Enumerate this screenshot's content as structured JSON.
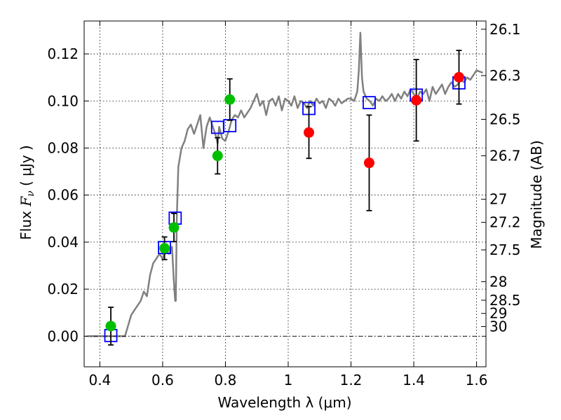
{
  "chart_data": {
    "type": "scatter",
    "xlabel": "Wavelength  λ (μm)",
    "ylabel_prefix": "Flux  ",
    "ylabel_symbol": "F",
    "ylabel_subscript": "ν",
    "ylabel_suffix": "  ( μJy )",
    "y2label": "Magnitude (AB)",
    "xlim": [
      0.35,
      1.63
    ],
    "ylim": [
      -0.013,
      0.134
    ],
    "grid": true,
    "x_ticks": [
      0.4,
      0.6,
      0.8,
      1.0,
      1.2,
      1.4,
      1.6
    ],
    "x_tick_labels": [
      "0.4",
      "0.6",
      "0.8",
      "1",
      "1.2",
      "1.4",
      "1.6"
    ],
    "y_ticks": [
      0.0,
      0.02,
      0.04,
      0.06,
      0.08,
      0.1,
      0.12
    ],
    "y_tick_labels": [
      "0.00",
      "0.02",
      "0.04",
      "0.06",
      "0.08",
      "0.10",
      "0.12"
    ],
    "y2_ticks": [
      {
        "label": "26.1",
        "flux": 0.1305
      },
      {
        "label": "26.3",
        "flux": 0.1108
      },
      {
        "label": "26.5",
        "flux": 0.0922
      },
      {
        "label": "26.7",
        "flux": 0.0767
      },
      {
        "label": "27",
        "flux": 0.0582
      },
      {
        "label": "27.2",
        "flux": 0.0484
      },
      {
        "label": "27.5",
        "flux": 0.0367
      },
      {
        "label": "28",
        "flux": 0.0232
      },
      {
        "label": "28.5",
        "flux": 0.0153
      },
      {
        "label": "29",
        "flux": 0.0097
      },
      {
        "label": "30",
        "flux": 0.0041
      }
    ],
    "series": [
      {
        "marker": "circle",
        "color": "#00bf00",
        "points": [
          {
            "x": 0.435,
            "y": 0.0043,
            "err": 0.008
          },
          {
            "x": 0.606,
            "y": 0.0374,
            "err": 0.0048
          },
          {
            "x": 0.636,
            "y": 0.0462,
            "err": 0.006
          },
          {
            "x": 0.775,
            "y": 0.0767,
            "err": 0.0077
          },
          {
            "x": 0.814,
            "y": 0.1006,
            "err": 0.0088
          }
        ]
      },
      {
        "marker": "circle",
        "color": "#ff0000",
        "points": [
          {
            "x": 1.066,
            "y": 0.0866,
            "err": 0.011
          },
          {
            "x": 1.258,
            "y": 0.0737,
            "err": 0.0203
          },
          {
            "x": 1.408,
            "y": 0.1003,
            "err": 0.0173
          },
          {
            "x": 1.544,
            "y": 0.1101,
            "err": 0.0114
          }
        ]
      },
      {
        "marker": "square",
        "color": "#0000ff",
        "points": [
          {
            "x": 0.435,
            "y": 0.0003
          },
          {
            "x": 0.606,
            "y": 0.0377
          },
          {
            "x": 0.64,
            "y": 0.0502
          },
          {
            "x": 0.775,
            "y": 0.0888
          },
          {
            "x": 0.814,
            "y": 0.0895
          },
          {
            "x": 1.066,
            "y": 0.0968
          },
          {
            "x": 1.258,
            "y": 0.0993
          },
          {
            "x": 1.408,
            "y": 0.1025
          },
          {
            "x": 1.544,
            "y": 0.1077
          }
        ]
      },
      {
        "type": "line",
        "color": "#808080",
        "x": [
          0.36,
          0.48,
          0.5,
          0.52,
          0.53,
          0.54,
          0.55,
          0.56,
          0.57,
          0.58,
          0.59,
          0.6,
          0.61,
          0.62,
          0.63,
          0.635,
          0.64,
          0.642,
          0.645,
          0.65,
          0.66,
          0.67,
          0.68,
          0.69,
          0.7,
          0.71,
          0.72,
          0.73,
          0.74,
          0.75,
          0.76,
          0.77,
          0.775,
          0.78,
          0.79,
          0.8,
          0.81,
          0.82,
          0.83,
          0.84,
          0.85,
          0.86,
          0.87,
          0.88,
          0.89,
          0.9,
          0.91,
          0.92,
          0.93,
          0.94,
          0.95,
          0.96,
          0.97,
          0.98,
          0.99,
          1.0,
          1.01,
          1.02,
          1.03,
          1.04,
          1.05,
          1.06,
          1.07,
          1.08,
          1.09,
          1.1,
          1.11,
          1.12,
          1.13,
          1.14,
          1.15,
          1.16,
          1.17,
          1.18,
          1.19,
          1.2,
          1.21,
          1.22,
          1.225,
          1.23,
          1.235,
          1.24,
          1.25,
          1.26,
          1.27,
          1.28,
          1.29,
          1.3,
          1.31,
          1.32,
          1.33,
          1.34,
          1.35,
          1.36,
          1.37,
          1.38,
          1.39,
          1.4,
          1.41,
          1.42,
          1.43,
          1.44,
          1.45,
          1.46,
          1.47,
          1.48,
          1.49,
          1.5,
          1.51,
          1.52,
          1.53,
          1.54,
          1.55,
          1.56,
          1.57,
          1.58,
          1.59,
          1.6,
          1.62
        ],
        "y": [
          0.0,
          0.0,
          0.009,
          0.013,
          0.015,
          0.019,
          0.017,
          0.026,
          0.031,
          0.033,
          0.035,
          0.033,
          0.036,
          0.035,
          0.038,
          0.025,
          0.015,
          0.015,
          0.05,
          0.072,
          0.08,
          0.083,
          0.088,
          0.09,
          0.086,
          0.09,
          0.094,
          0.08,
          0.089,
          0.093,
          0.089,
          0.085,
          0.082,
          0.089,
          0.084,
          0.083,
          0.087,
          0.092,
          0.094,
          0.093,
          0.096,
          0.093,
          0.095,
          0.097,
          0.1,
          0.103,
          0.098,
          0.1,
          0.094,
          0.1,
          0.101,
          0.098,
          0.102,
          0.096,
          0.101,
          0.1,
          0.098,
          0.102,
          0.097,
          0.1,
          0.099,
          0.097,
          0.1,
          0.098,
          0.101,
          0.099,
          0.1,
          0.097,
          0.101,
          0.1,
          0.098,
          0.101,
          0.099,
          0.1,
          0.101,
          0.101,
          0.1,
          0.104,
          0.113,
          0.129,
          0.11,
          0.104,
          0.101,
          0.1,
          0.098,
          0.101,
          0.1,
          0.102,
          0.1,
          0.101,
          0.103,
          0.1,
          0.103,
          0.101,
          0.104,
          0.102,
          0.105,
          0.103,
          0.101,
          0.104,
          0.103,
          0.105,
          0.1,
          0.106,
          0.103,
          0.105,
          0.107,
          0.103,
          0.106,
          0.108,
          0.106,
          0.107,
          0.109,
          0.108,
          0.11,
          0.109,
          0.111,
          0.113,
          0.112
        ]
      }
    ]
  }
}
